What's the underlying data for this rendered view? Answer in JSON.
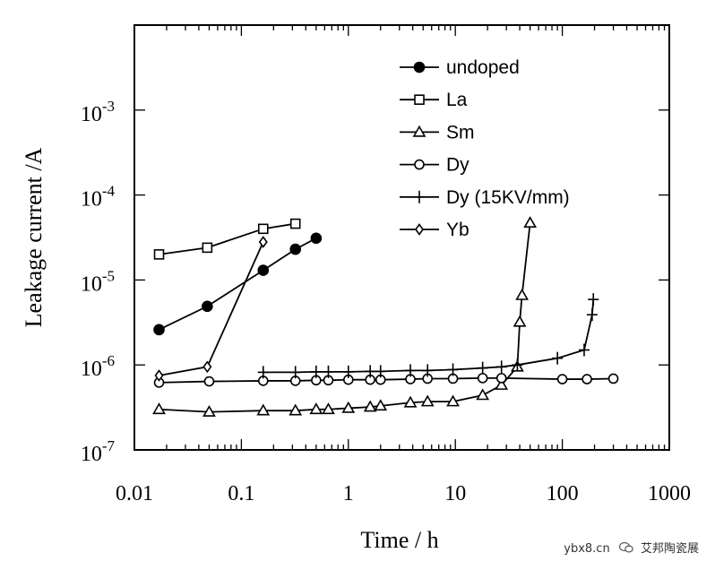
{
  "chart_data": {
    "type": "line",
    "title": "",
    "xlabel": "Time / h",
    "ylabel": "Leakage current /A",
    "xscale": "log",
    "yscale": "log",
    "xlim": [
      0.01,
      1000
    ],
    "ylim": [
      1e-07,
      0.01
    ],
    "x_tick_values": [
      0.01,
      0.1,
      1,
      10,
      100,
      1000
    ],
    "x_tick_labels": [
      "0.01",
      "0.1",
      "1",
      "10",
      "100",
      "1000"
    ],
    "y_tick_values": [
      1e-07,
      1e-06,
      1e-05,
      0.0001,
      0.001
    ],
    "y_tick_exponents": [
      "-7",
      "-6",
      "-5",
      "-4",
      "-3"
    ],
    "y_tick_base": "10",
    "legend_position": "top-right",
    "series": [
      {
        "name": "undoped",
        "marker": "filled-circle",
        "x": [
          0.017,
          0.048,
          0.16,
          0.32,
          0.5
        ],
        "y": [
          2.6e-06,
          4.9e-06,
          1.3e-05,
          2.3e-05,
          3.1e-05
        ]
      },
      {
        "name": "La",
        "marker": "open-square",
        "x": [
          0.017,
          0.048,
          0.16,
          0.32
        ],
        "y": [
          2e-05,
          2.4e-05,
          4e-05,
          4.6e-05
        ]
      },
      {
        "name": "Sm",
        "marker": "open-triangle",
        "x": [
          0.017,
          0.05,
          0.16,
          0.32,
          0.5,
          0.65,
          1.0,
          1.6,
          2.0,
          3.8,
          5.5,
          9.5,
          18,
          27,
          38,
          40,
          42,
          50
        ],
        "y": [
          3e-07,
          2.8e-07,
          2.9e-07,
          2.9e-07,
          3e-07,
          3e-07,
          3.1e-07,
          3.2e-07,
          3.3e-07,
          3.6e-07,
          3.7e-07,
          3.7e-07,
          4.4e-07,
          5.8e-07,
          9.5e-07,
          3.2e-06,
          6.6e-06,
          4.7e-05
        ]
      },
      {
        "name": "Dy",
        "marker": "open-circle",
        "x": [
          0.017,
          0.05,
          0.16,
          0.32,
          0.5,
          0.65,
          1.0,
          1.6,
          2.0,
          3.8,
          5.5,
          9.5,
          18,
          27,
          100,
          170,
          300
        ],
        "y": [
          6.2e-07,
          6.4e-07,
          6.5e-07,
          6.5e-07,
          6.6e-07,
          6.6e-07,
          6.7e-07,
          6.7e-07,
          6.7e-07,
          6.8e-07,
          6.9e-07,
          6.9e-07,
          7e-07,
          7e-07,
          6.8e-07,
          6.8e-07,
          6.9e-07
        ]
      },
      {
        "name": "Dy (15KV/mm)",
        "marker": "plus",
        "x": [
          0.16,
          0.32,
          0.5,
          0.65,
          1.0,
          1.6,
          2.0,
          3.8,
          5.5,
          9.5,
          18,
          27,
          38,
          90,
          160,
          190,
          195
        ],
        "y": [
          8.2e-07,
          8.2e-07,
          8.3e-07,
          8.3e-07,
          8.3e-07,
          8.4e-07,
          8.4e-07,
          8.6e-07,
          8.6e-07,
          8.8e-07,
          9.2e-07,
          9.5e-07,
          1e-06,
          1.2e-06,
          1.5e-06,
          3.9e-06,
          5.9e-06
        ]
      },
      {
        "name": "Yb",
        "marker": "open-diamond",
        "x": [
          0.017,
          0.048,
          0.16
        ],
        "y": [
          7.5e-07,
          9.5e-07,
          2.8e-05
        ]
      }
    ]
  },
  "watermark": {
    "site": "ybx8.cn",
    "name": "艾邦陶瓷展"
  }
}
